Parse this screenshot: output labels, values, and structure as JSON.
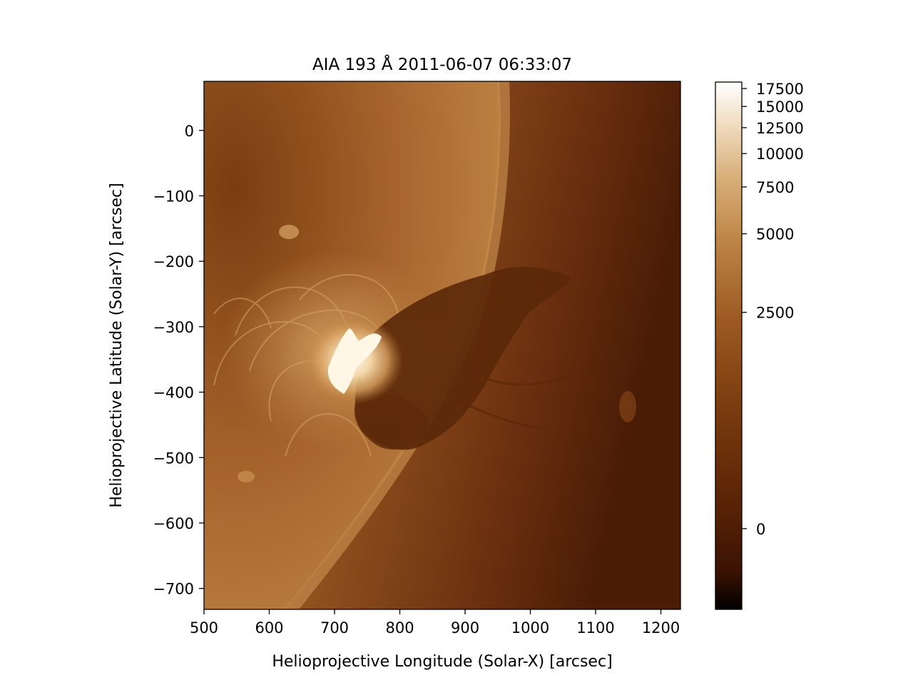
{
  "figure": {
    "title": "AIA 193 Å 2011-06-07 06:33:07",
    "x_axis": {
      "label": "Helioprojective Longitude (Solar-X) [arcsec]",
      "range": [
        500,
        1230
      ],
      "ticks": [
        {
          "value": 500,
          "label": "500"
        },
        {
          "value": 600,
          "label": "600"
        },
        {
          "value": 700,
          "label": "700"
        },
        {
          "value": 800,
          "label": "800"
        },
        {
          "value": 900,
          "label": "900"
        },
        {
          "value": 1000,
          "label": "1000"
        },
        {
          "value": 1100,
          "label": "1100"
        },
        {
          "value": 1200,
          "label": "1200"
        }
      ]
    },
    "y_axis": {
      "label": "Helioprojective Latitude (Solar-Y) [arcsec]",
      "range": [
        -732,
        75
      ],
      "ticks": [
        {
          "value": 0,
          "label": "0"
        },
        {
          "value": -100,
          "label": "−100"
        },
        {
          "value": -200,
          "label": "−200"
        },
        {
          "value": -300,
          "label": "−300"
        },
        {
          "value": -400,
          "label": "−400"
        },
        {
          "value": -500,
          "label": "−500"
        },
        {
          "value": -600,
          "label": "−600"
        },
        {
          "value": -700,
          "label": "−700"
        }
      ]
    },
    "colorbar": {
      "scale": "asinh",
      "range": [
        -600,
        18500
      ],
      "ticks": [
        {
          "value": 0,
          "label": "0"
        },
        {
          "value": 2500,
          "label": "2500"
        },
        {
          "value": 5000,
          "label": "5000"
        },
        {
          "value": 7500,
          "label": "7500"
        },
        {
          "value": 10000,
          "label": "10000"
        },
        {
          "value": 12500,
          "label": "12500"
        },
        {
          "value": 15000,
          "label": "15000"
        },
        {
          "value": 17500,
          "label": "17500"
        }
      ]
    },
    "colors": {
      "colormap": [
        "#000000",
        "#3a1203",
        "#5a2306",
        "#7a3b0e",
        "#9c5a22",
        "#bd8546",
        "#d8b07a",
        "#f0dcc0",
        "#ffffff"
      ],
      "disk": "#a8652a",
      "corona_near": "#9a5a22",
      "corona_far": "#4e1e06",
      "flare_core": "#fff6e6",
      "dark_ejecta": "#5a2809"
    }
  }
}
